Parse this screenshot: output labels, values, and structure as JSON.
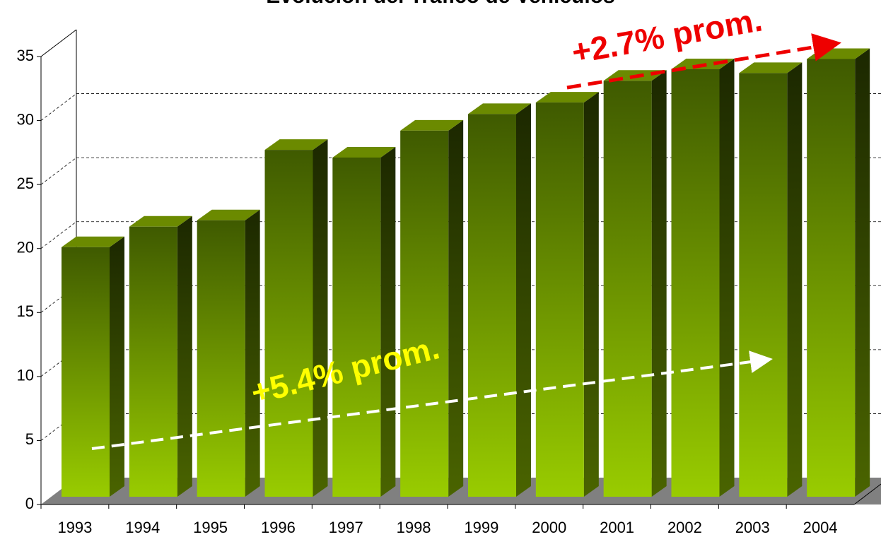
{
  "chart_data": {
    "type": "bar3d",
    "title": "Evolución del Tráfico de Vehículos",
    "categories": [
      "1993",
      "1994",
      "1995",
      "1996",
      "1997",
      "1998",
      "1999",
      "2000",
      "2001",
      "2002",
      "2003",
      "2004"
    ],
    "values": [
      19.5,
      21.1,
      21.6,
      27.1,
      26.5,
      28.6,
      29.9,
      30.8,
      32.5,
      33.4,
      33.1,
      34.2
    ],
    "color": "#99cc00",
    "ylim": [
      0,
      35
    ],
    "yticks": [
      0,
      5,
      10,
      15,
      20,
      25,
      30,
      35
    ],
    "grid": true,
    "annotations": [
      {
        "text": "+5.4% prom.",
        "color": "#ffff00"
      },
      {
        "text": "+2.7% prom.",
        "color": "#ee0000"
      }
    ]
  }
}
